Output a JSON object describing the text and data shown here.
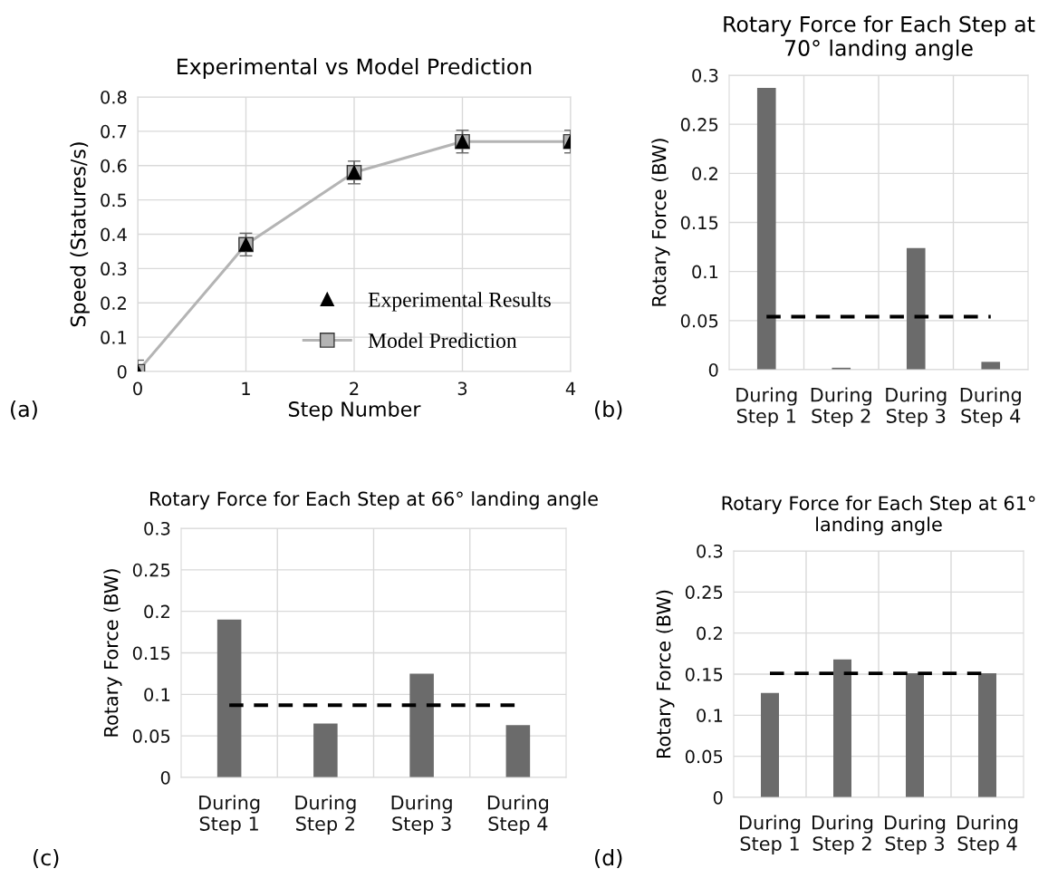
{
  "chart_data": [
    {
      "type": "line",
      "title": "Experimental vs Model Prediction",
      "xlabel": "Step Number",
      "ylabel": "Speed (Statures/s)",
      "x": [
        0,
        1,
        2,
        3,
        4
      ],
      "xlim": [
        0,
        4
      ],
      "xticks": [
        0,
        1,
        2,
        3,
        4
      ],
      "ylim": [
        0,
        0.8
      ],
      "yticks": [
        0,
        0.1,
        0.2,
        0.3,
        0.4,
        0.5,
        0.6,
        0.7,
        0.8
      ],
      "grid": true,
      "legend": "lower right",
      "series": [
        {
          "name": "Experimental Results",
          "type": "scatter",
          "marker": "triangle",
          "color": "#000000",
          "values": [
            0,
            0.37,
            0.58,
            0.67,
            0.67
          ],
          "errors": [
            0.033,
            0.033,
            0.033,
            0.033,
            0.033
          ]
        },
        {
          "name": "Model Prediction",
          "type": "line",
          "marker": "square",
          "color": "#b4b4b4",
          "values": [
            0,
            0.37,
            0.58,
            0.67,
            0.67
          ]
        }
      ],
      "annotations": [
        "(a)"
      ]
    },
    {
      "type": "bar",
      "title": "Rotary Force for Each Step at 70° landing angle",
      "ylabel": "Rotary Force (BW)",
      "categories": [
        "During\nStep 1",
        "During\nStep 2",
        "During\nStep 3",
        "During\nStep 4"
      ],
      "values": [
        0.287,
        0.002,
        0.124,
        0.008
      ],
      "color": "#6b6b6b",
      "ylim": [
        0,
        0.3
      ],
      "yticks": [
        0,
        0.05,
        0.1,
        0.15,
        0.2,
        0.25,
        0.3
      ],
      "grid": true,
      "ref_lines": [
        {
          "axis": "y",
          "value": 0.054,
          "color": "#000000",
          "line_style": "dashed"
        }
      ],
      "annotations": [
        "(b)"
      ]
    },
    {
      "type": "bar",
      "title": "Rotary Force for Each Step at 66° landing angle",
      "ylabel": "Rotary Force (BW)",
      "categories": [
        "During\nStep 1",
        "During\nStep 2",
        "During\nStep 3",
        "During\nStep 4"
      ],
      "values": [
        0.19,
        0.065,
        0.125,
        0.063
      ],
      "color": "#6b6b6b",
      "ylim": [
        0,
        0.3
      ],
      "yticks": [
        0,
        0.05,
        0.1,
        0.15,
        0.2,
        0.25,
        0.3
      ],
      "grid": true,
      "ref_lines": [
        {
          "axis": "y",
          "value": 0.087,
          "color": "#000000",
          "line_style": "dashed"
        }
      ],
      "annotations": [
        "(c)"
      ]
    },
    {
      "type": "bar",
      "title": "Rotary Force for Each Step at 61° landing angle",
      "ylabel": "Rotary Force (BW)",
      "categories": [
        "During\nStep 1",
        "During\nStep 2",
        "During\nStep 3",
        "During\nStep 4"
      ],
      "values": [
        0.127,
        0.168,
        0.151,
        0.151
      ],
      "color": "#6b6b6b",
      "ylim": [
        0,
        0.3
      ],
      "yticks": [
        0,
        0.05,
        0.1,
        0.15,
        0.2,
        0.25,
        0.3
      ],
      "grid": true,
      "ref_lines": [
        {
          "axis": "y",
          "value": 0.151,
          "color": "#000000",
          "line_style": "dashed"
        }
      ],
      "annotations": [
        "(d)"
      ]
    }
  ]
}
